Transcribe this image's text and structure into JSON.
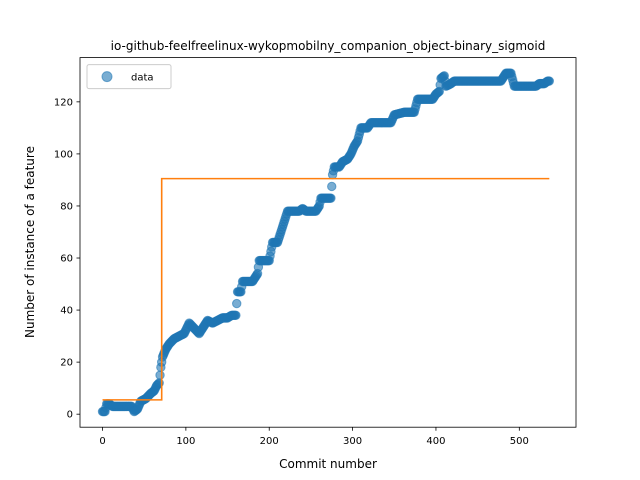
{
  "chart_data": {
    "type": "scatter",
    "title": "io-github-feelfreelinux-wykopmobilny_companion_object-binary_sigmoid",
    "xlabel": "Commit number",
    "ylabel": "Number of instance of a feature",
    "xlim": [
      -27,
      568
    ],
    "ylim": [
      -5,
      137
    ],
    "xticks": [
      0,
      100,
      200,
      300,
      400,
      500
    ],
    "yticks": [
      0,
      20,
      40,
      60,
      80,
      100,
      120
    ],
    "grid": false,
    "legend": {
      "position": "top-left",
      "entries": [
        "data"
      ]
    },
    "colors": {
      "data": "#1f77b4",
      "fit": "#ff7f0e"
    },
    "series": [
      {
        "name": "data",
        "kind": "scatter",
        "segments": [
          [
            0,
            1
          ],
          [
            3,
            1
          ],
          [
            5,
            4
          ],
          [
            8,
            4
          ],
          [
            12,
            3
          ],
          [
            20,
            3
          ],
          [
            35,
            3
          ],
          [
            38,
            1
          ],
          [
            42,
            2
          ],
          [
            46,
            5
          ],
          [
            52,
            6
          ],
          [
            58,
            8
          ],
          [
            62,
            9
          ],
          [
            65,
            11
          ],
          [
            68,
            12
          ],
          [
            70,
            18
          ],
          [
            72,
            22
          ],
          [
            76,
            25
          ],
          [
            80,
            27
          ],
          [
            86,
            29
          ],
          [
            92,
            30
          ],
          [
            98,
            31
          ],
          [
            104,
            35
          ],
          [
            110,
            33
          ],
          [
            116,
            31
          ],
          [
            120,
            33
          ],
          [
            126,
            36
          ],
          [
            132,
            35
          ],
          [
            138,
            36
          ],
          [
            144,
            37
          ],
          [
            150,
            37
          ],
          [
            155,
            38
          ],
          [
            160,
            38
          ],
          [
            162,
            47
          ],
          [
            166,
            47
          ],
          [
            168,
            51
          ],
          [
            180,
            51
          ],
          [
            186,
            54
          ],
          [
            188,
            59
          ],
          [
            200,
            59
          ],
          [
            204,
            66
          ],
          [
            210,
            66
          ],
          [
            214,
            70
          ],
          [
            218,
            74
          ],
          [
            222,
            78
          ],
          [
            236,
            78
          ],
          [
            240,
            79
          ],
          [
            244,
            78
          ],
          [
            256,
            78
          ],
          [
            260,
            80
          ],
          [
            262,
            83
          ],
          [
            274,
            83
          ],
          [
            276,
            92
          ],
          [
            278,
            95
          ],
          [
            284,
            95
          ],
          [
            288,
            97
          ],
          [
            294,
            98
          ],
          [
            298,
            100
          ],
          [
            302,
            103
          ],
          [
            306,
            105
          ],
          [
            310,
            110
          ],
          [
            318,
            110
          ],
          [
            322,
            112
          ],
          [
            346,
            112
          ],
          [
            350,
            115
          ],
          [
            362,
            116
          ],
          [
            374,
            116
          ],
          [
            378,
            121
          ],
          [
            396,
            121
          ],
          [
            400,
            123
          ],
          [
            404,
            124
          ],
          [
            406,
            129
          ],
          [
            410,
            130
          ],
          [
            412,
            126
          ],
          [
            418,
            127
          ],
          [
            422,
            128
          ],
          [
            478,
            128
          ],
          [
            484,
            131
          ],
          [
            490,
            131
          ],
          [
            494,
            126
          ],
          [
            520,
            126
          ],
          [
            524,
            127
          ],
          [
            530,
            127
          ],
          [
            534,
            128
          ],
          [
            536,
            128
          ]
        ]
      },
      {
        "name": "fit",
        "kind": "step",
        "points": [
          [
            0,
            5.5
          ],
          [
            71,
            5.5
          ],
          [
            71,
            90.5
          ],
          [
            536,
            90.5
          ]
        ]
      }
    ]
  }
}
